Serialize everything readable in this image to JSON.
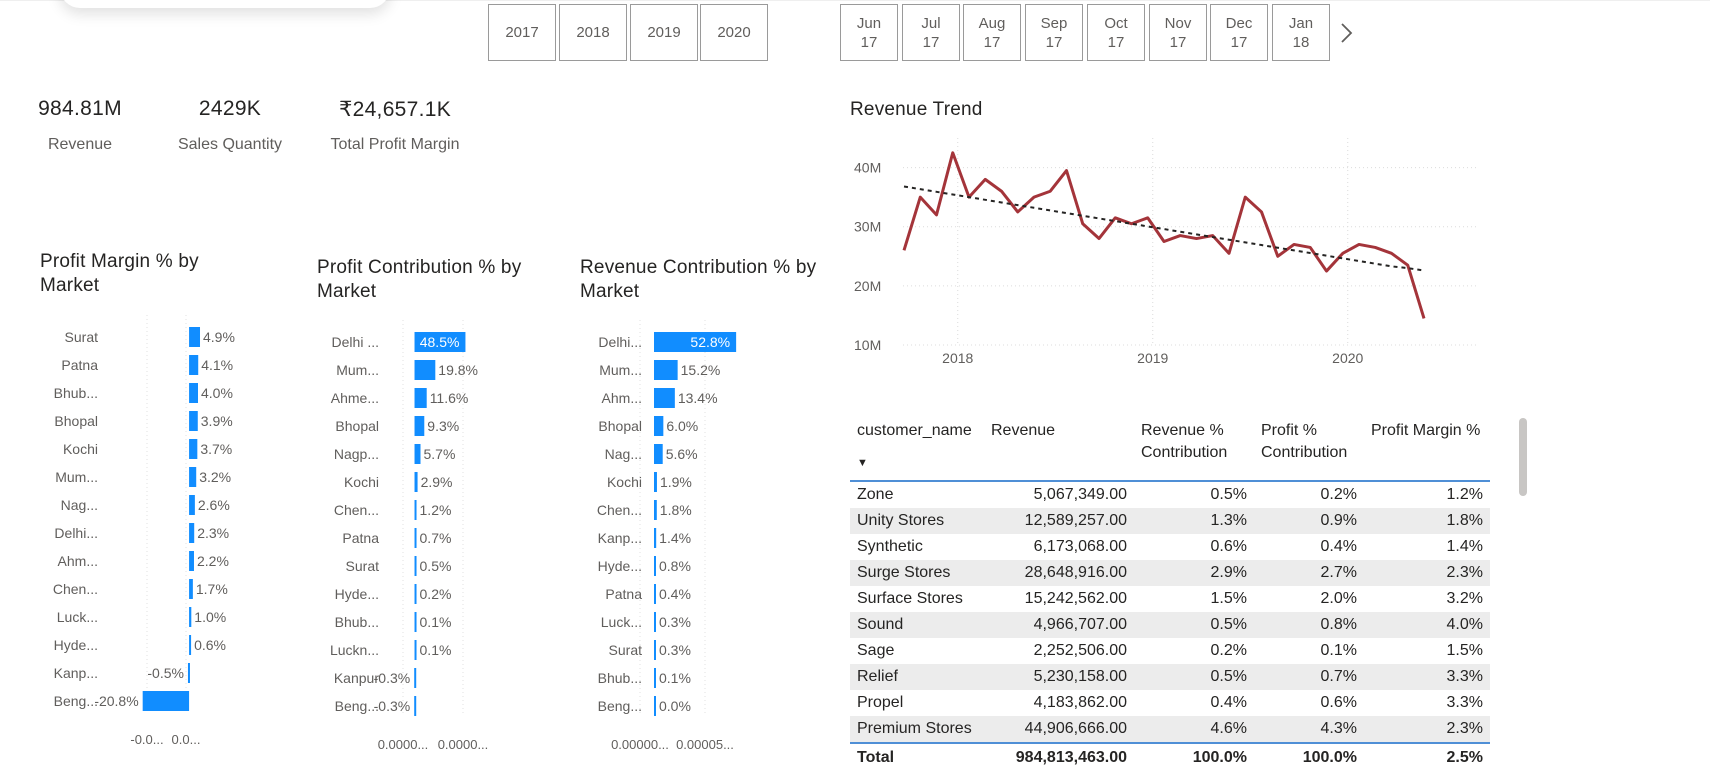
{
  "year_slicer": [
    "2017",
    "2018",
    "2019",
    "2020"
  ],
  "month_slicer": [
    {
      "month": "Jun",
      "year": "17"
    },
    {
      "month": "Jul",
      "year": "17"
    },
    {
      "month": "Aug",
      "year": "17"
    },
    {
      "month": "Sep",
      "year": "17"
    },
    {
      "month": "Oct",
      "year": "17"
    },
    {
      "month": "Nov",
      "year": "17"
    },
    {
      "month": "Dec",
      "year": "17"
    },
    {
      "month": "Jan",
      "year": "18"
    }
  ],
  "kpis": [
    {
      "value": "984.81M",
      "label": "Revenue"
    },
    {
      "value": "2429K",
      "label": "Sales Quantity"
    },
    {
      "value": "₹24,657.1K",
      "label": "Total Profit Margin"
    }
  ],
  "colors": {
    "bar": "#118dff",
    "line": "#a4343a",
    "trend": "#252423",
    "header_rule": "#4f8fd6"
  },
  "chart_data": [
    {
      "type": "bar",
      "orientation": "horizontal",
      "title": "Profit Margin % by Market",
      "categories": [
        "Surat",
        "Patna",
        "Bhub...",
        "Bhopal",
        "Kochi",
        "Mum...",
        "Nag...",
        "Delhi...",
        "Ahm...",
        "Chen...",
        "Luck...",
        "Hyde...",
        "Kanp...",
        "Beng..."
      ],
      "values": [
        4.9,
        4.1,
        4.0,
        3.9,
        3.7,
        3.2,
        2.6,
        2.3,
        2.2,
        1.7,
        1.0,
        0.6,
        -0.5,
        -20.8
      ],
      "labels": [
        "4.9%",
        "4.1%",
        "4.0%",
        "3.9%",
        "3.7%",
        "3.2%",
        "2.6%",
        "2.3%",
        "2.2%",
        "1.7%",
        "1.0%",
        "0.6%",
        "-0.5%",
        "-20.8%"
      ],
      "x_ticks": [
        "-0.0...",
        "0.0..."
      ],
      "xlim": [
        -22,
        30
      ]
    },
    {
      "type": "bar",
      "orientation": "horizontal",
      "title": "Profit Contribution % by Market",
      "categories": [
        "Delhi ...",
        "Mum...",
        "Ahme...",
        "Bhopal",
        "Nagp...",
        "Kochi",
        "Chen...",
        "Patna",
        "Surat",
        "Hyde...",
        "Bhub...",
        "Luckn...",
        "Kanpur",
        "Beng..."
      ],
      "values": [
        48.5,
        19.8,
        11.6,
        9.3,
        5.7,
        2.9,
        1.2,
        0.7,
        0.5,
        0.2,
        0.1,
        0.1,
        -0.3,
        -0.3
      ],
      "labels": [
        "48.5%",
        "19.8%",
        "11.6%",
        "9.3%",
        "5.7%",
        "2.9%",
        "1.2%",
        "0.7%",
        "0.5%",
        "0.2%",
        "0.1%",
        "0.1%",
        "-0.3%",
        "-0.3%"
      ],
      "x_ticks": [
        "0.0000...",
        "0.0000..."
      ],
      "xlim": [
        -0.5,
        110
      ]
    },
    {
      "type": "bar",
      "orientation": "horizontal",
      "title": "Revenue Contribution % by Market",
      "categories": [
        "Delhi...",
        "Mum...",
        "Ahm...",
        "Bhopal",
        "Nag...",
        "Kochi",
        "Chen...",
        "Kanp...",
        "Hyde...",
        "Patna",
        "Luck...",
        "Surat",
        "Bhub...",
        "Beng..."
      ],
      "values": [
        52.8,
        15.2,
        13.4,
        6.0,
        5.6,
        1.9,
        1.8,
        1.4,
        0.8,
        0.4,
        0.3,
        0.3,
        0.1,
        0.0
      ],
      "labels": [
        "52.8%",
        "15.2%",
        "13.4%",
        "6.0%",
        "5.6%",
        "1.9%",
        "1.8%",
        "1.4%",
        "0.8%",
        "0.4%",
        "0.3%",
        "0.3%",
        "0.1%",
        "0.0%"
      ],
      "x_ticks": [
        "0.00000...",
        "0.00005..."
      ],
      "xlim": [
        0,
        90
      ]
    },
    {
      "type": "line",
      "title": "Revenue Trend",
      "x": [
        "2017-10",
        "2017-11",
        "2017-12",
        "2018-01",
        "2018-02",
        "2018-03",
        "2018-04",
        "2018-05",
        "2018-06",
        "2018-07",
        "2018-08",
        "2018-09",
        "2018-10",
        "2018-11",
        "2018-12",
        "2019-01",
        "2019-02",
        "2019-03",
        "2019-04",
        "2019-05",
        "2019-06",
        "2019-07",
        "2019-08",
        "2019-09",
        "2019-10",
        "2019-11",
        "2019-12",
        "2020-01",
        "2020-02",
        "2020-03",
        "2020-04",
        "2020-05",
        "2020-06"
      ],
      "series": [
        {
          "values": [
            26.0,
            35.0,
            32.0,
            42.5,
            35.0,
            38.0,
            36.0,
            32.5,
            35.0,
            36.0,
            39.5,
            30.5,
            28.0,
            31.5,
            30.5,
            31.5,
            27.5,
            28.5,
            28.0,
            28.5,
            25.5,
            35.0,
            32.5,
            25.0,
            27.0,
            26.5,
            22.5,
            25.5,
            27.0,
            26.5,
            25.5,
            23.5,
            14.5
          ]
        },
        {
          "style": "dashed",
          "values": [
            36.8,
            36.35,
            35.9,
            35.45,
            35.0,
            34.55,
            34.1,
            33.65,
            33.2,
            32.75,
            32.3,
            31.85,
            31.4,
            30.95,
            30.5,
            30.05,
            29.6,
            29.15,
            28.7,
            28.25,
            27.8,
            27.35,
            26.9,
            26.45,
            26.0,
            25.55,
            25.1,
            24.65,
            24.2,
            23.75,
            23.3,
            23.0,
            22.6
          ]
        }
      ],
      "x_ticks": [
        "2018",
        "2019",
        "2020"
      ],
      "y_ticks": [
        "10M",
        "20M",
        "30M",
        "40M"
      ],
      "ylim": [
        10,
        45
      ],
      "grid": true
    }
  ],
  "table": {
    "columns": [
      "customer_name",
      "Revenue",
      "Revenue % Contribution",
      "Profit % Contribution",
      "Profit Margin %"
    ],
    "sort_indicator": "▼",
    "rows": [
      [
        "Zone",
        "5,067,349.00",
        "0.5%",
        "0.2%",
        "1.2%"
      ],
      [
        "Unity Stores",
        "12,589,257.00",
        "1.3%",
        "0.9%",
        "1.8%"
      ],
      [
        "Synthetic",
        "6,173,068.00",
        "0.6%",
        "0.4%",
        "1.4%"
      ],
      [
        "Surge Stores",
        "28,648,916.00",
        "2.9%",
        "2.7%",
        "2.3%"
      ],
      [
        "Surface Stores",
        "15,242,562.00",
        "1.5%",
        "2.0%",
        "3.2%"
      ],
      [
        "Sound",
        "4,966,707.00",
        "0.5%",
        "0.8%",
        "4.0%"
      ],
      [
        "Sage",
        "2,252,506.00",
        "0.2%",
        "0.1%",
        "1.5%"
      ],
      [
        "Relief",
        "5,230,158.00",
        "0.5%",
        "0.7%",
        "3.3%"
      ],
      [
        "Propel",
        "4,183,862.00",
        "0.4%",
        "0.6%",
        "3.3%"
      ],
      [
        "Premium Stores",
        "44,906,666.00",
        "4.6%",
        "4.3%",
        "2.3%"
      ]
    ],
    "total": [
      "Total",
      "984,813,463.00",
      "100.0%",
      "100.0%",
      "2.5%"
    ]
  }
}
